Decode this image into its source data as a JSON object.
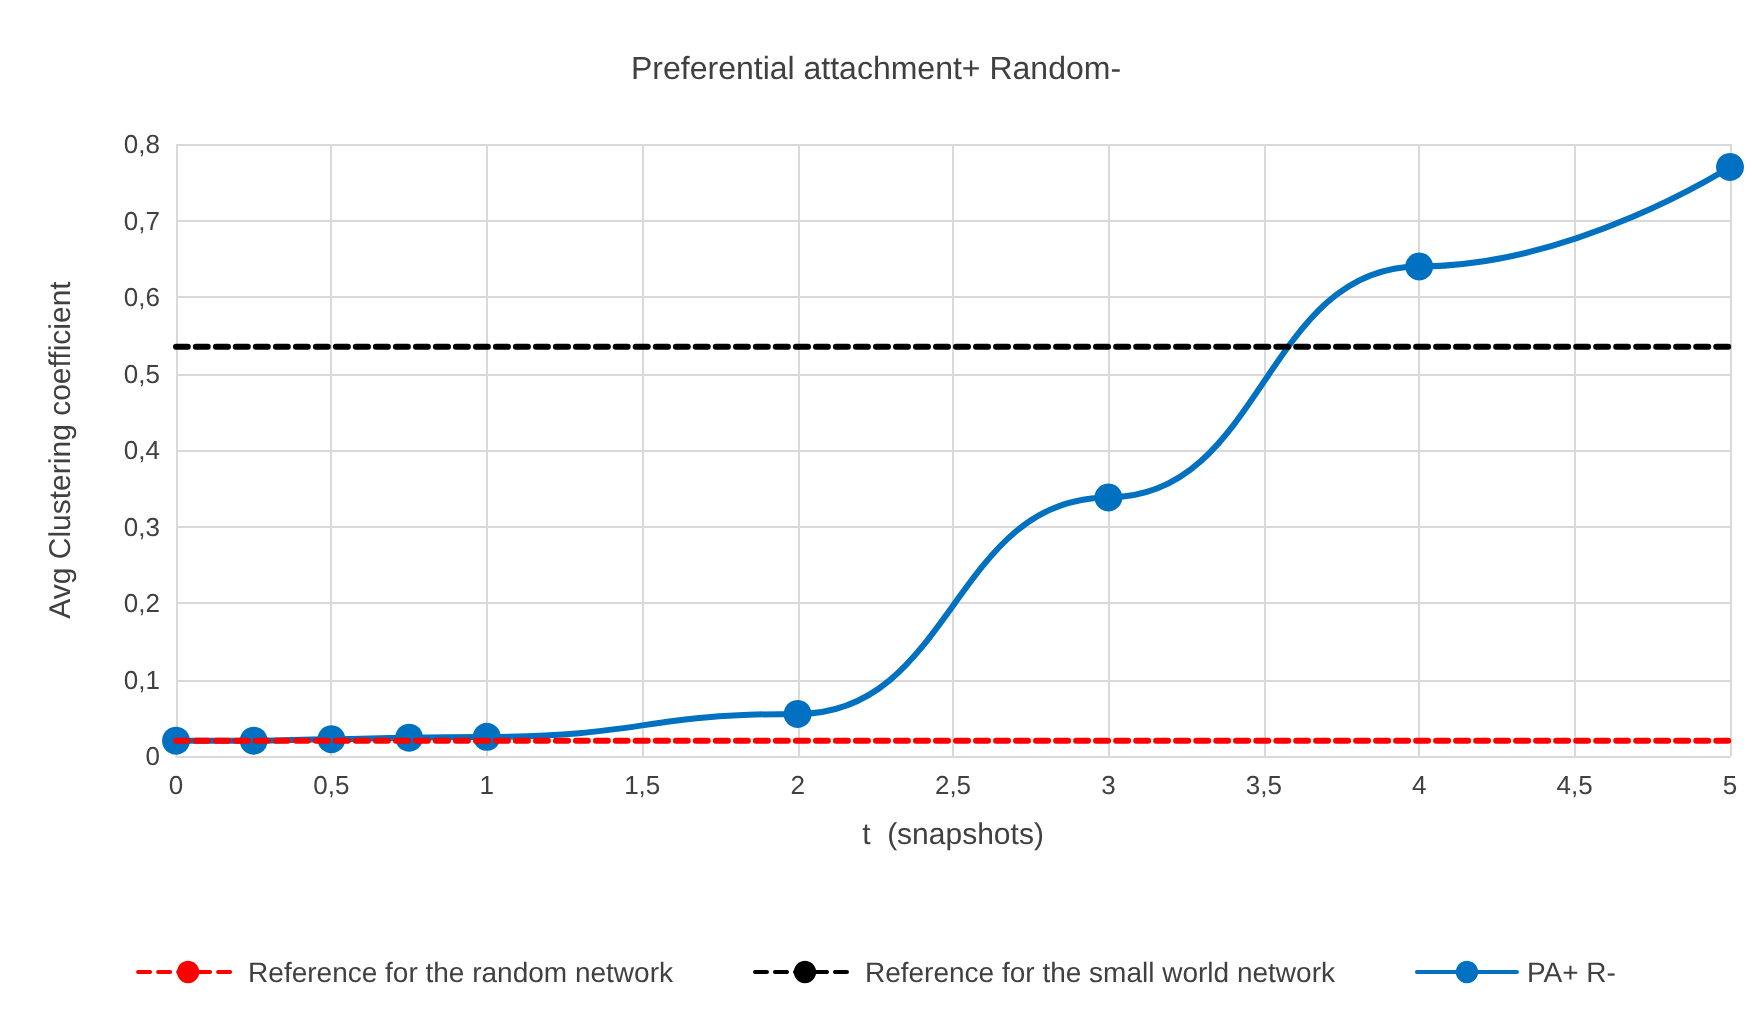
{
  "chart_data": {
    "type": "line",
    "title": "Preferential attachment+ Random-",
    "xlabel": "t  (snapshots)",
    "ylabel": "Avg Clustering coefficient",
    "series": [
      {
        "name": "Reference for the random network",
        "color": "#ff0000",
        "line_style": "dashed",
        "marker": "none",
        "x": [
          0,
          5
        ],
        "values": [
          0.02,
          0.02
        ]
      },
      {
        "name": "Reference for the small world network",
        "color": "#000000",
        "line_style": "dashed",
        "marker": "none",
        "x": [
          0,
          5
        ],
        "values": [
          0.535,
          0.535
        ]
      },
      {
        "name": "PA+ R-",
        "color": "#0070c0",
        "line_style": "solid",
        "marker": "circle",
        "x": [
          0,
          0.25,
          0.5,
          0.75,
          1,
          2,
          3,
          4,
          5
        ],
        "values": [
          0.02,
          0.02,
          0.022,
          0.024,
          0.025,
          0.055,
          0.338,
          0.64,
          0.77
        ]
      }
    ],
    "xlim": [
      0,
      5
    ],
    "xticks": [
      0,
      {
        "value": 0.5,
        "label": "0,5"
      },
      1,
      {
        "value": 1.5,
        "label": "1,5"
      },
      2,
      {
        "value": 2.5,
        "label": "2,5"
      },
      3,
      {
        "value": 3.5,
        "label": "3,5"
      },
      4,
      {
        "value": 4.5,
        "label": "4,5"
      },
      5
    ],
    "ylim": [
      0,
      0.8
    ],
    "yticks": [
      0,
      {
        "value": 0.1,
        "label": "0,1"
      },
      {
        "value": 0.2,
        "label": "0,2"
      },
      {
        "value": 0.3,
        "label": "0,3"
      },
      {
        "value": 0.4,
        "label": "0,4"
      },
      {
        "value": 0.5,
        "label": "0,5"
      },
      {
        "value": 0.6,
        "label": "0,6"
      },
      {
        "value": 0.7,
        "label": "0,7"
      },
      {
        "value": 0.8,
        "label": "0,8"
      }
    ],
    "grid": true,
    "legend": "bottom"
  }
}
